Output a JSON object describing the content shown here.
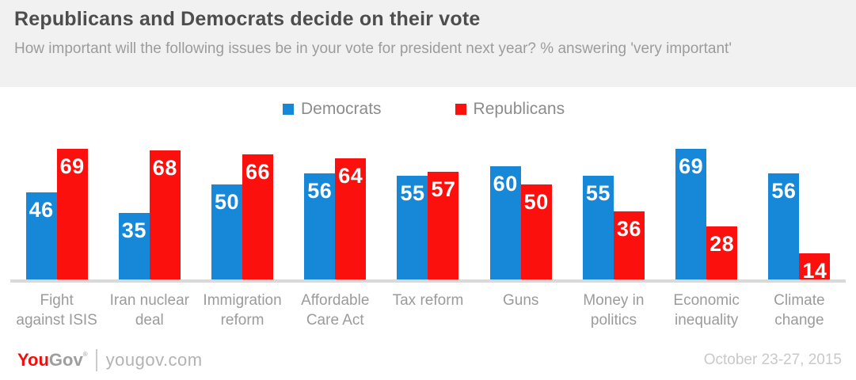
{
  "header": {
    "title": "Republicans and Democrats decide on their vote",
    "subtitle": "How important will the following issues be in your vote for president next year? % answering 'very important'"
  },
  "colors": {
    "democrat_blue": "#1787d8",
    "republican_red": "#fb100d",
    "header_bg": "#f1f1f1",
    "baseline_gray": "#d9d9d9"
  },
  "chart_data": {
    "type": "bar",
    "title": "Republicans and Democrats decide on their vote",
    "subtitle": "How important will the following issues be in your vote for president next year? % answering 'very important'",
    "categories": [
      "Fight against ISIS",
      "Iran nuclear deal",
      "Immigration reform",
      "Affordable Care Act",
      "Tax reform",
      "Guns",
      "Money in politics",
      "Economic inequality",
      "Climate change"
    ],
    "category_lines": [
      [
        "Fight",
        "against ISIS"
      ],
      [
        "Iran nuclear",
        "deal"
      ],
      [
        "Immigration",
        "reform"
      ],
      [
        "Affordable",
        "Care Act"
      ],
      [
        "Tax reform"
      ],
      [
        "Guns"
      ],
      [
        "Money in",
        "politics"
      ],
      [
        "Economic",
        "inequality"
      ],
      [
        "Climate",
        "change"
      ]
    ],
    "series": [
      {
        "name": "Democrats",
        "color": "#1787d8",
        "values": [
          46,
          35,
          50,
          56,
          55,
          60,
          55,
          69,
          56
        ]
      },
      {
        "name": "Republicans",
        "color": "#fb100d",
        "values": [
          69,
          68,
          66,
          64,
          57,
          50,
          36,
          28,
          14
        ]
      }
    ],
    "ylim": [
      0,
      75
    ],
    "value_labels": "inside-top",
    "legend_position": "top",
    "grid": false
  },
  "footer": {
    "logo_you": "You",
    "logo_gov": "Gov",
    "logo_mark": "®",
    "site": "yougov.com",
    "date": "October 23-27, 2015"
  }
}
